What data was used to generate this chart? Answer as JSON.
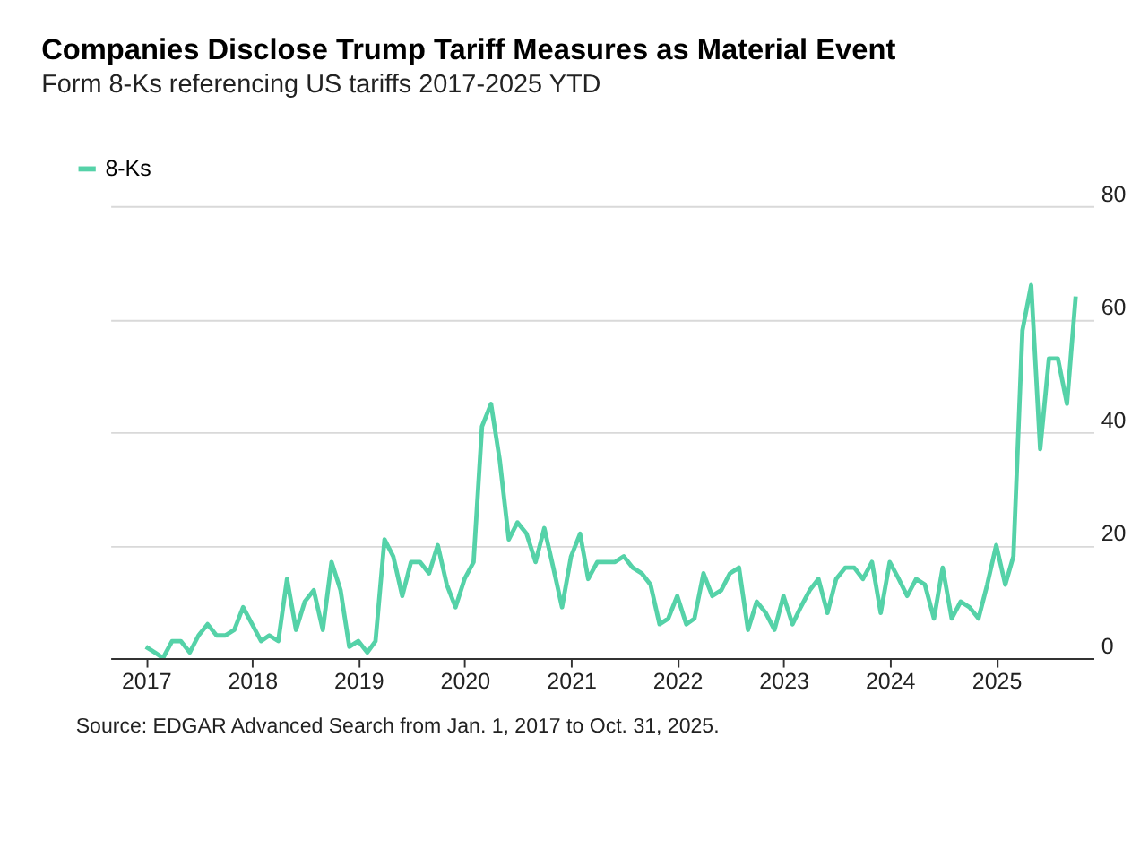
{
  "chart_data": {
    "type": "line",
    "title": "Companies Disclose Trump Tariff Measures as Material Event",
    "subtitle": "Form 8-Ks referencing US tariffs 2017-2025 YTD",
    "x": [
      "2017-01",
      "2017-02",
      "2017-03",
      "2017-04",
      "2017-05",
      "2017-06",
      "2017-07",
      "2017-08",
      "2017-09",
      "2017-10",
      "2017-11",
      "2017-12",
      "2018-01",
      "2018-02",
      "2018-03",
      "2018-04",
      "2018-05",
      "2018-06",
      "2018-07",
      "2018-08",
      "2018-09",
      "2018-10",
      "2018-11",
      "2018-12",
      "2019-01",
      "2019-02",
      "2019-03",
      "2019-04",
      "2019-05",
      "2019-06",
      "2019-07",
      "2019-08",
      "2019-09",
      "2019-10",
      "2019-11",
      "2019-12",
      "2020-01",
      "2020-02",
      "2020-03",
      "2020-04",
      "2020-05",
      "2020-06",
      "2020-07",
      "2020-08",
      "2020-09",
      "2020-10",
      "2020-11",
      "2020-12",
      "2021-01",
      "2021-02",
      "2021-03",
      "2021-04",
      "2021-05",
      "2021-06",
      "2021-07",
      "2021-08",
      "2021-09",
      "2021-10",
      "2021-11",
      "2021-12",
      "2022-01",
      "2022-02",
      "2022-03",
      "2022-04",
      "2022-05",
      "2022-06",
      "2022-07",
      "2022-08",
      "2022-09",
      "2022-10",
      "2022-11",
      "2022-12",
      "2023-01",
      "2023-02",
      "2023-03",
      "2023-04",
      "2023-05",
      "2023-06",
      "2023-07",
      "2023-08",
      "2023-09",
      "2023-10",
      "2023-11",
      "2023-12",
      "2024-01",
      "2024-02",
      "2024-03",
      "2024-04",
      "2024-05",
      "2024-06",
      "2024-07",
      "2024-08",
      "2024-09",
      "2024-10",
      "2024-11",
      "2024-12",
      "2025-01",
      "2025-02",
      "2025-03",
      "2025-04",
      "2025-05",
      "2025-06",
      "2025-07",
      "2025-08",
      "2025-09",
      "2025-10"
    ],
    "series": [
      {
        "name": "8-Ks",
        "color": "#55d2a8",
        "values": [
          2,
          1,
          0,
          3,
          3,
          1,
          4,
          6,
          4,
          4,
          5,
          9,
          6,
          3,
          4,
          3,
          14,
          5,
          10,
          12,
          5,
          17,
          12,
          2,
          3,
          1,
          3,
          21,
          18,
          11,
          17,
          17,
          15,
          20,
          13,
          9,
          14,
          17,
          41,
          45,
          35,
          21,
          24,
          22,
          17,
          23,
          16,
          9,
          18,
          22,
          14,
          17,
          17,
          17,
          18,
          16,
          15,
          13,
          6,
          7,
          11,
          6,
          7,
          15,
          11,
          12,
          15,
          16,
          5,
          10,
          8,
          5,
          11,
          6,
          9,
          12,
          14,
          8,
          14,
          16,
          16,
          14,
          17,
          8,
          17,
          14,
          11,
          14,
          13,
          7,
          16,
          7,
          10,
          9,
          7,
          13,
          20,
          13,
          18,
          58,
          66,
          37,
          53,
          53,
          45,
          64
        ]
      }
    ],
    "xlim": [
      "2016-09",
      "2025-12"
    ],
    "xticks": [
      "2017",
      "2018",
      "2019",
      "2020",
      "2021",
      "2022",
      "2023",
      "2024",
      "2025"
    ],
    "ylim": [
      0,
      80
    ],
    "yticks": [
      0,
      20,
      40,
      60,
      80
    ],
    "grid": "y",
    "legend": "top left",
    "marker": "none",
    "line_style": "solid",
    "annotations": [
      "Source: EDGAR Advanced Search from Jan. 1, 2017 to Oct. 31, 2025."
    ]
  }
}
